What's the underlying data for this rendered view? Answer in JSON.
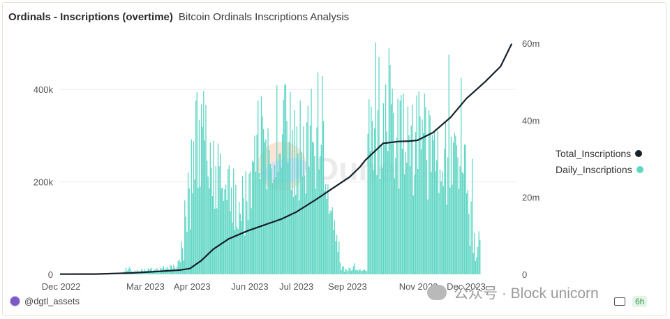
{
  "header": {
    "title": "Ordinals - Inscriptions (overtime)",
    "subtitle": "Bitcoin Ordinals Inscriptions Analysis"
  },
  "owner": {
    "handle": "@dgtl_assets"
  },
  "watermark": {
    "overlay": "Dune",
    "stamp": "公众号 · Block unicorn"
  },
  "footer": {
    "age": "6h"
  },
  "colors": {
    "daily": "#5fd6c4",
    "total": "#15202b",
    "grid": "#ececec"
  },
  "chart_data": {
    "type": "bar+line",
    "x_ticks": [
      "Dec 2022",
      "Mar 2023",
      "Apr 2023",
      "Jun 2023",
      "Jul 2023",
      "Sep 2023",
      "Nov 2023",
      "Dec 2023"
    ],
    "y_left": {
      "ticks": [
        "0",
        "200k",
        "400k"
      ],
      "tick_values": [
        0,
        200000,
        400000
      ],
      "range": [
        0,
        500000
      ]
    },
    "y_right": {
      "ticks": [
        "0",
        "20m",
        "40m",
        "60m"
      ],
      "tick_values": [
        0,
        20,
        40,
        60
      ],
      "range": [
        0,
        60
      ]
    },
    "legend_position": "right",
    "series": [
      {
        "name": "Total_Inscriptions",
        "type": "line",
        "axis": "right",
        "unit": "millions",
        "x": [
          "2022-12-14",
          "2023-01-15",
          "2023-02-15",
          "2023-03-15",
          "2023-04-01",
          "2023-04-10",
          "2023-04-20",
          "2023-05-01",
          "2023-05-15",
          "2023-06-01",
          "2023-06-15",
          "2023-07-01",
          "2023-07-15",
          "2023-08-01",
          "2023-08-15",
          "2023-09-01",
          "2023-09-10",
          "2023-09-15",
          "2023-10-01",
          "2023-10-15",
          "2023-10-25",
          "2023-11-01",
          "2023-11-15",
          "2023-12-01",
          "2023-12-15",
          "2024-01-01",
          "2024-01-15",
          "2024-01-25"
        ],
        "values": [
          0.05,
          0.07,
          0.35,
          0.8,
          1.1,
          1.5,
          3.5,
          6.5,
          9.2,
          11.3,
          12.7,
          14.3,
          16.2,
          19.3,
          22.0,
          25.3,
          27.8,
          29.6,
          34.0,
          34.5,
          34.6,
          34.8,
          36.8,
          40.8,
          45.6,
          50.0,
          54.0,
          59.9
        ]
      },
      {
        "name": "Daily_Inscriptions",
        "type": "bar",
        "axis": "left",
        "start": "2022-12-14",
        "interval": "day",
        "values": [
          0,
          0,
          0,
          0,
          0,
          0,
          0,
          0,
          0,
          0,
          0,
          0,
          0,
          0,
          0,
          0,
          0,
          0,
          0,
          0,
          0,
          0,
          0,
          0,
          0,
          0,
          0,
          0,
          0,
          0,
          0,
          0,
          0,
          0,
          0,
          0,
          0,
          0,
          0,
          0,
          0,
          0,
          0,
          0,
          0,
          0,
          0,
          0,
          0,
          0,
          0,
          0,
          0,
          0,
          0,
          0,
          0,
          5000,
          6000,
          14000,
          8000,
          10000,
          16000,
          12000,
          7000,
          4000,
          4000,
          8000,
          5000,
          9000,
          4000,
          7000,
          5000,
          12000,
          8000,
          4000,
          12000,
          7000,
          8000,
          13000,
          9000,
          12000,
          14000,
          6000,
          10000,
          9000,
          12000,
          13000,
          9000,
          4000,
          14000,
          11000,
          14000,
          18000,
          11000,
          12000,
          16000,
          13000,
          8000,
          20000,
          18000,
          12000,
          21000,
          14000,
          9000,
          17000,
          29000,
          32000,
          26000,
          71000,
          56000,
          30000,
          160000,
          125000,
          92000,
          220000,
          186000,
          97000,
          292000,
          176000,
          288000,
          205000,
          376000,
          394000,
          187000,
          334000,
          190000,
          368000,
          319000,
          397000,
          289000,
          367000,
          246000,
          212000,
          186000,
          285000,
          230000,
          169000,
          289000,
          142000,
          234000,
          143000,
          283000,
          234000,
          262000,
          186000,
          188000,
          159000,
          184000,
          194000,
          161000,
          228000,
          236000,
          137000,
          188000,
          112000,
          229000,
          96000,
          194000,
          103000,
          98000,
          157000,
          131000,
          115000,
          213000,
          165000,
          84000,
          223000,
          158000,
          118000,
          218000,
          223000,
          143000,
          246000,
          243000,
          300000,
          222000,
          302000,
          376000,
          219000,
          207000,
          386000,
          342000,
          314000,
          286000,
          292000,
          184000,
          316000,
          269000,
          239000,
          229000,
          198000,
          205000,
          236000,
          210000,
          409000,
          222000,
          261000,
          262000,
          231000,
          303000,
          378000,
          410000,
          412000,
          332000,
          242000,
          287000,
          395000,
          183000,
          313000,
          168000,
          355000,
          172000,
          320000,
          262000,
          160000,
          376000,
          265000,
          212000,
          320000,
          214000,
          175000,
          329000,
          365000,
          233000,
          322000,
          402000,
          287000,
          285000,
          256000,
          185000,
          318000,
          437000,
          227000,
          256000,
          280000,
          429000,
          332000,
          181000,
          195000,
          163000,
          195000,
          131000,
          138000,
          136000,
          145000,
          96000,
          117000,
          72000,
          85000,
          48000,
          71000,
          26000,
          9000,
          16000,
          18000,
          6000,
          12000,
          10000,
          7000,
          14000,
          13000,
          8000,
          10000,
          18000,
          24000,
          9000,
          10000,
          8000,
          10000,
          11000,
          7000,
          8000,
          9000,
          10000,
          8000,
          7000,
          304000,
          379000,
          267000,
          363000,
          332000,
          225000,
          316000,
          502000,
          215000,
          355000,
          470000,
          207000,
          280000,
          230000,
          370000,
          280000,
          411000,
          309000,
          267000,
          489000,
          453000,
          368000,
          402000,
          349000,
          208000,
          252000,
          296000,
          380000,
          185000,
          376000,
          388000,
          272000,
          391000,
          217000,
          265000,
          242000,
          363000,
          301000,
          234000,
          322000,
          367000,
          171000,
          216000,
          308000,
          387000,
          228000,
          396000,
          342000,
          270000,
          335000,
          306000,
          391000,
          362000,
          247000,
          162000,
          355000,
          344000,
          222000,
          302000,
          291000,
          308000,
          223000,
          247000,
          310000,
          176000,
          227000,
          201000,
          223000,
          191000,
          272000,
          331000,
          151000,
          253000,
          475000,
          188000,
          298000,
          194000,
          285000,
          307000,
          300000,
          279000,
          253000,
          185000,
          234000,
          425000,
          221000,
          218000,
          281000,
          280000,
          175000,
          183000,
          131000,
          62000,
          158000,
          250000,
          46000,
          89000,
          29000,
          37000,
          59000,
          93000,
          74000
        ]
      }
    ]
  }
}
